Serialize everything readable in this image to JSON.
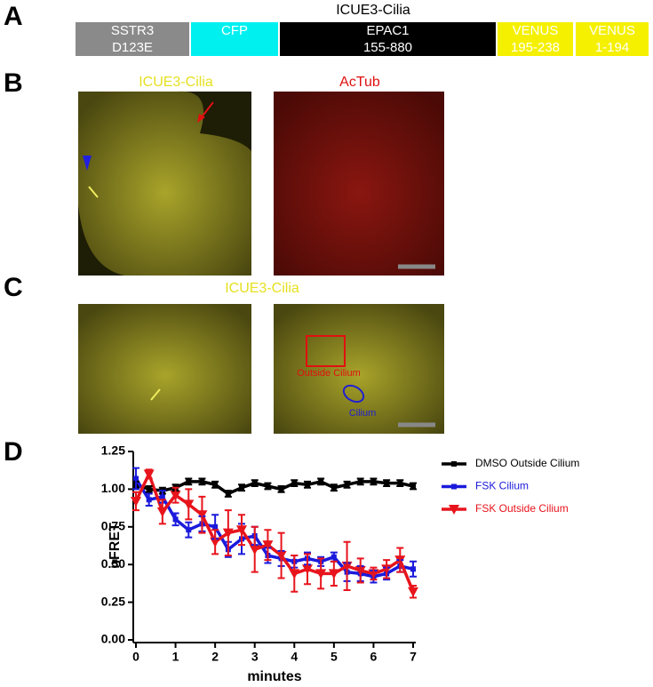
{
  "panels": {
    "A": {
      "label": "A",
      "title": "ICUE3-Cilia",
      "segments": [
        {
          "lines": [
            "SSTR3",
            "D123E"
          ]
        },
        {
          "lines": [
            "CFP"
          ]
        },
        {
          "lines": [
            "EPAC1",
            "155-880"
          ]
        },
        {
          "lines": [
            "VENUS",
            "195-238"
          ]
        },
        {
          "lines": [
            "VENUS",
            "1-194"
          ]
        }
      ]
    },
    "B": {
      "label": "B",
      "left_title": "ICUE3-Cilia",
      "right_title": "AcTub"
    },
    "C": {
      "label": "C",
      "title": "ICUE3-Cilia",
      "roi_outside": "Outside Cilium",
      "roi_cilium": "Cilium"
    },
    "D": {
      "label": "D"
    }
  },
  "chart_data": {
    "type": "line",
    "ylabel": "nFRET",
    "xlabel": "minutes",
    "x": [
      0,
      0.33,
      0.67,
      1,
      1.33,
      1.67,
      2,
      2.33,
      2.67,
      3,
      3.33,
      3.67,
      4,
      4.33,
      4.67,
      5,
      5.33,
      5.67,
      6,
      6.33,
      6.67,
      7
    ],
    "xlim": [
      0,
      7
    ],
    "xticks": [
      0,
      1,
      2,
      3,
      4,
      5,
      6,
      7
    ],
    "ylim": [
      0,
      1.25
    ],
    "yticks": [
      {
        "value": 0,
        "label": "0.00"
      },
      0.25,
      {
        "value": 0.5,
        "label": "0.50"
      },
      0.75,
      {
        "value": 1,
        "label": "1.00"
      },
      1.25
    ],
    "series": [
      {
        "name": "DMSO Outside Cilium",
        "color": "#000000",
        "marker": "square",
        "values": [
          1.03,
          1.0,
          0.99,
          1.01,
          1.05,
          1.05,
          1.03,
          0.97,
          1.01,
          1.04,
          1.02,
          1.0,
          1.04,
          1.03,
          1.05,
          1.01,
          1.03,
          1.05,
          1.05,
          1.04,
          1.04,
          1.02
        ],
        "errors": [
          0.02,
          0.02,
          0.02,
          0.02,
          0.02,
          0.02,
          0.02,
          0.02,
          0.02,
          0.02,
          0.02,
          0.02,
          0.02,
          0.02,
          0.02,
          0.02,
          0.02,
          0.02,
          0.02,
          0.02,
          0.02,
          0.02
        ]
      },
      {
        "name": "FSK Cilium",
        "color": "#1a1adc",
        "marker": "square",
        "values": [
          1.07,
          0.93,
          0.95,
          0.8,
          0.73,
          0.77,
          0.75,
          0.6,
          0.67,
          0.69,
          0.56,
          0.54,
          0.52,
          0.54,
          0.52,
          0.55,
          0.45,
          0.44,
          0.42,
          0.44,
          0.49,
          0.47
        ],
        "errors": [
          0.07,
          0.04,
          0.04,
          0.04,
          0.05,
          0.05,
          0.08,
          0.05,
          0.1,
          0.06,
          0.05,
          0.05,
          0.04,
          0.04,
          0.03,
          0.03,
          0.06,
          0.05,
          0.04,
          0.04,
          0.04,
          0.05
        ]
      },
      {
        "name": "FSK Outside Cilium",
        "color": "#e8141c",
        "marker": "triangle-down",
        "values": [
          0.92,
          1.1,
          0.85,
          0.96,
          0.9,
          0.83,
          0.65,
          0.71,
          0.73,
          0.6,
          0.63,
          0.56,
          0.44,
          0.47,
          0.44,
          0.44,
          0.49,
          0.46,
          0.44,
          0.47,
          0.53,
          0.32
        ],
        "errors": [
          0.06,
          0.03,
          0.08,
          0.05,
          0.1,
          0.12,
          0.08,
          0.15,
          0.1,
          0.15,
          0.1,
          0.15,
          0.12,
          0.1,
          0.1,
          0.08,
          0.16,
          0.08,
          0.04,
          0.06,
          0.08,
          0.04
        ]
      }
    ]
  }
}
